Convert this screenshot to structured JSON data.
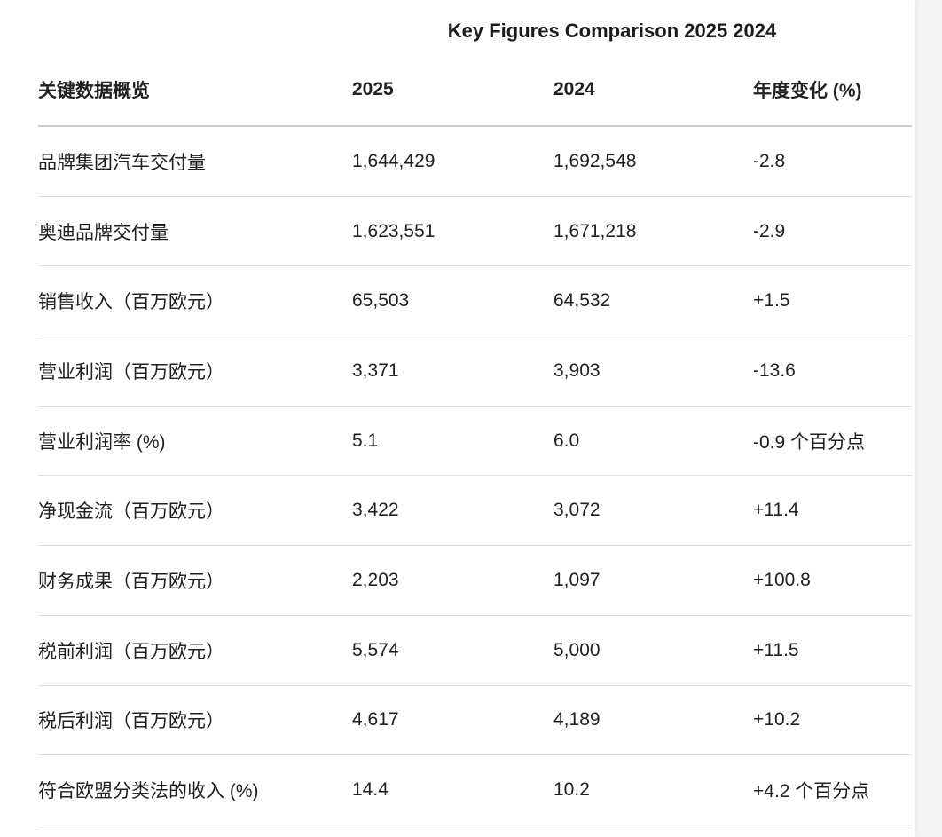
{
  "chart": {
    "title": "Key Figures Comparison 2025 2024"
  },
  "table": {
    "headers": [
      "关键数据概览",
      "2025",
      "2024",
      "年度变化 (%)"
    ],
    "rows": [
      {
        "cells": [
          "品牌集团汽车交付量",
          "1,644,429",
          "1,692,548",
          "-2.8"
        ]
      },
      {
        "cells": [
          "奥迪品牌交付量",
          "1,623,551",
          "1,671,218",
          "-2.9"
        ]
      },
      {
        "cells": [
          "销售收入（百万欧元）",
          "65,503",
          "64,532",
          "+1.5"
        ]
      },
      {
        "cells": [
          "营业利润（百万欧元）",
          "3,371",
          "3,903",
          "-13.6"
        ]
      },
      {
        "cells": [
          "营业利润率 (%)",
          "5.1",
          "6.0",
          "-0.9 个百分点"
        ]
      },
      {
        "cells": [
          "净现金流（百万欧元）",
          "3,422",
          "3,072",
          "+11.4"
        ]
      },
      {
        "cells": [
          "财务成果（百万欧元）",
          "2,203",
          "1,097",
          "+100.8"
        ]
      },
      {
        "cells": [
          "税前利润（百万欧元）",
          "5,574",
          "5,000",
          "+11.5"
        ]
      },
      {
        "cells": [
          "税后利润（百万欧元）",
          "4,617",
          "4,189",
          "+10.2"
        ]
      },
      {
        "cells": [
          "符合欧盟分类法的收入 (%)",
          "14.4",
          "10.2",
          "+4.2 个百分点"
        ]
      }
    ]
  },
  "colors": {
    "page_background": "#f4f4f5",
    "card_background": "#ffffff",
    "text": "#212121",
    "header_divider": "#cdcdcd",
    "row_divider": "#dedede"
  },
  "chart_data": {
    "type": "table",
    "title": "Key Figures Comparison 2025 2024",
    "columns": [
      "关键数据概览",
      "2025",
      "2024",
      "年度变化 (%)"
    ],
    "rows": [
      {
        "metric": "品牌集团汽车交付量",
        "y2025": 1644429,
        "y2024": 1692548,
        "yoy_change": -2.8
      },
      {
        "metric": "奥迪品牌交付量",
        "y2025": 1623551,
        "y2024": 1671218,
        "yoy_change": -2.9
      },
      {
        "metric": "销售收入（百万欧元）",
        "y2025": 65503,
        "y2024": 64532,
        "yoy_change": 1.5
      },
      {
        "metric": "营业利润（百万欧元）",
        "y2025": 3371,
        "y2024": 3903,
        "yoy_change": -13.6
      },
      {
        "metric": "营业利润率 (%)",
        "y2025": 5.1,
        "y2024": 6.0,
        "yoy_change": -0.9,
        "yoy_change_unit": "个百分点"
      },
      {
        "metric": "净现金流（百万欧元）",
        "y2025": 3422,
        "y2024": 3072,
        "yoy_change": 11.4
      },
      {
        "metric": "财务成果（百万欧元）",
        "y2025": 2203,
        "y2024": 1097,
        "yoy_change": 100.8
      },
      {
        "metric": "税前利润（百万欧元）",
        "y2025": 5574,
        "y2024": 5000,
        "yoy_change": 11.5
      },
      {
        "metric": "税后利润（百万欧元）",
        "y2025": 4617,
        "y2024": 4189,
        "yoy_change": 10.2
      },
      {
        "metric": "符合欧盟分类法的收入 (%)",
        "y2025": 14.4,
        "y2024": 10.2,
        "yoy_change": 4.2,
        "yoy_change_unit": "个百分点"
      }
    ]
  }
}
